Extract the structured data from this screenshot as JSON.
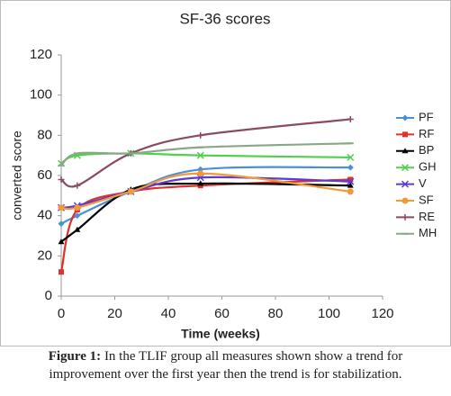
{
  "chart_data": {
    "type": "line",
    "title": "SF-36 scores",
    "xlabel": "Time (weeks)",
    "ylabel": "converted score",
    "x": [
      0,
      6,
      26,
      52,
      108
    ],
    "series": [
      {
        "name": "PF",
        "color": "#4a90d9",
        "marker": "diamond",
        "values": [
          36,
          40,
          52,
          63,
          64
        ]
      },
      {
        "name": "RF",
        "color": "#e0302a",
        "marker": "square",
        "values": [
          12,
          43,
          52,
          55,
          58
        ]
      },
      {
        "name": "BP",
        "color": "#000000",
        "marker": "triangle",
        "values": [
          27,
          33,
          53,
          56,
          55
        ]
      },
      {
        "name": "GH",
        "color": "#4fd04f",
        "marker": "x",
        "values": [
          66,
          70,
          71,
          70,
          69
        ]
      },
      {
        "name": "V",
        "color": "#5b3ad6",
        "marker": "x",
        "values": [
          44,
          45,
          52,
          59,
          57
        ]
      },
      {
        "name": "SF",
        "color": "#f39a36",
        "marker": "circle",
        "values": [
          44,
          44,
          52,
          61,
          52
        ]
      },
      {
        "name": "RE",
        "color": "#8b4a63",
        "marker": "plus",
        "values": [
          58,
          55,
          71,
          80,
          88
        ]
      },
      {
        "name": "MH",
        "color": "#8aa78a",
        "marker": "dash",
        "values": [
          65,
          71,
          71,
          74,
          76
        ]
      }
    ],
    "xlim": [
      0,
      120
    ],
    "xticks": [
      0,
      20,
      40,
      60,
      80,
      100,
      120
    ],
    "ylim": [
      0,
      120
    ],
    "yticks": [
      0,
      20,
      40,
      60,
      80,
      100,
      120
    ]
  },
  "caption": {
    "label": "Figure 1:",
    "text": "In the TLIF group all measures shown show a trend for",
    "text2": "improvement over the first year then the trend is for stabilization."
  }
}
